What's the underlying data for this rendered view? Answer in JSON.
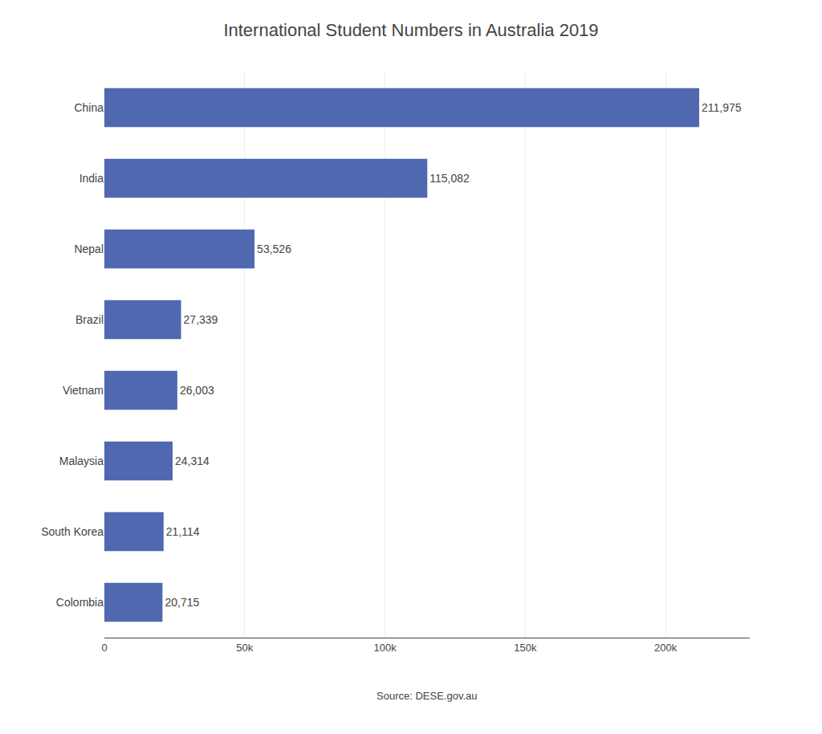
{
  "chart_data": {
    "type": "bar",
    "orientation": "horizontal",
    "title": "International Student Numbers in Australia 2019",
    "annotations": [
      "Source: DESE.gov.au"
    ],
    "categories": [
      "China",
      "India",
      "Nepal",
      "Brazil",
      "Vietnam",
      "Malaysia",
      "South Korea",
      "Colombia"
    ],
    "values": [
      211975,
      115082,
      53526,
      27339,
      26003,
      24314,
      21114,
      20715
    ],
    "value_labels": [
      "211,975",
      "115,082",
      "53,526",
      "27,339",
      "26,003",
      "24,314",
      "21,114",
      "20,715"
    ],
    "data_labels": true,
    "color": "#5068b0",
    "xlim": [
      0,
      230000
    ],
    "xticks": [
      0,
      {
        "value": 50000,
        "label": "50k"
      },
      {
        "value": 100000,
        "label": "100k"
      },
      {
        "value": 150000,
        "label": "150k"
      },
      {
        "value": 200000,
        "label": "200k"
      }
    ],
    "grid": true
  }
}
